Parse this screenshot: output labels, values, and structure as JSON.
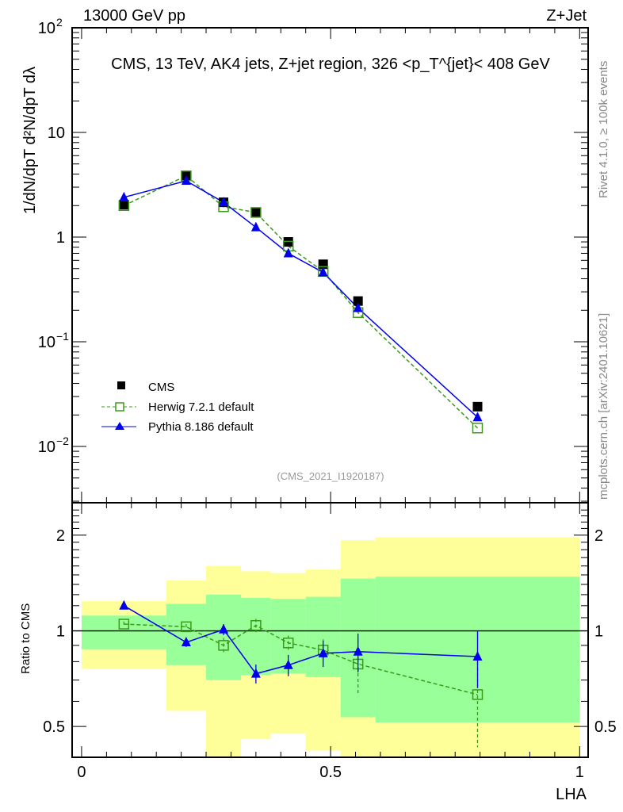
{
  "header": {
    "left": "13000 GeV pp",
    "right": "Z+Jet"
  },
  "side": {
    "rivet": "Rivet 4.1.0, ≥ 100k events",
    "mcplots": "mcplots.cern.ch [arXiv:2401.10621]"
  },
  "colors": {
    "cms": "#000000",
    "herwig": "#3a9a1a",
    "pythia": "#0000ee",
    "band_inner": "#99ff99",
    "band_outer": "#ffff99"
  },
  "chart_data": [
    {
      "type": "line",
      "title": "CMS, 13 TeV, AK4 jets, Z+jet region, 326 <p_T^{jet}< 408 GeV",
      "ylabel": "1/dN/dpT  d²N/dpT dλ",
      "ylabel_parts": {
        "num_top": "1",
        "den_top": "d N / d p",
        "num_right": "d²N",
        "den_right": "d p  dλ",
        "sub": "T"
      },
      "xlabel": "LHA",
      "xlim": [
        -0.019,
        1.017
      ],
      "ylim": [
        0.0029,
        100
      ],
      "yscale": "log",
      "yticks": [
        {
          "v": 0.01,
          "base": "10",
          "exp": "−2"
        },
        {
          "v": 0.1,
          "base": "10",
          "exp": "−1"
        },
        {
          "v": 1,
          "base": "1",
          "exp": ""
        },
        {
          "v": 10,
          "base": "10",
          "exp": ""
        },
        {
          "v": 100,
          "base": "10",
          "exp": "2"
        }
      ],
      "x": [
        0.085,
        0.21,
        0.285,
        0.35,
        0.415,
        0.485,
        0.555,
        0.795
      ],
      "series": [
        {
          "name": "CMS",
          "marker": "square-filled",
          "values": [
            2.04,
            3.8,
            2.15,
            1.72,
            0.9,
            0.55,
            0.245,
            0.024
          ]
        },
        {
          "name": "Herwig 7.2.1 default",
          "marker": "square-open",
          "line": "dashed",
          "values": [
            2.0,
            3.85,
            1.95,
            1.72,
            0.82,
            0.47,
            0.19,
            0.015
          ]
        },
        {
          "name": "Pythia 8.186 default",
          "marker": "triangle",
          "line": "solid",
          "values": [
            2.4,
            3.45,
            2.15,
            1.24,
            0.7,
            0.46,
            0.21,
            0.019
          ]
        }
      ],
      "legend": "bottom-left",
      "annotation": "(CMS_2021_I1920187)"
    },
    {
      "type": "line",
      "ylabel": "Ratio to CMS",
      "xlabel": "LHA",
      "xlim": [
        -0.019,
        1.017
      ],
      "ylim": [
        0.4,
        2.53
      ],
      "yscale": "log",
      "yticks": [
        {
          "v": 0.5,
          "label": "0.5"
        },
        {
          "v": 1,
          "label": "1"
        },
        {
          "v": 2,
          "label": "2"
        }
      ],
      "xticks": [
        {
          "v": 0,
          "label": "0"
        },
        {
          "v": 0.5,
          "label": "0.5"
        },
        {
          "v": 1,
          "label": "1"
        }
      ],
      "bin_edges": [
        0,
        0.17,
        0.25,
        0.32,
        0.38,
        0.45,
        0.52,
        0.59,
        1.0
      ],
      "band_inner": {
        "lo": [
          0.875,
          0.78,
          0.7,
          0.726,
          0.734,
          0.715,
          0.535,
          0.515
        ],
        "hi": [
          1.117,
          1.216,
          1.3,
          1.27,
          1.26,
          1.28,
          1.46,
          1.48
        ]
      },
      "band_outer": {
        "lo": [
          0.76,
          0.56,
          0.36,
          0.456,
          0.476,
          0.42,
          0.3,
          0.3
        ],
        "hi": [
          1.24,
          1.44,
          1.6,
          1.54,
          1.52,
          1.56,
          1.93,
          1.97
        ]
      },
      "x": [
        0.085,
        0.21,
        0.285,
        0.35,
        0.415,
        0.485,
        0.555,
        0.795
      ],
      "series": [
        {
          "name": "Herwig 7.2.1 default",
          "values": [
            1.05,
            1.03,
            0.9,
            1.04,
            0.916,
            0.87,
            0.786,
            0.63
          ],
          "err": [
            0.02,
            0.02,
            0.05,
            0.05,
            0.05,
            0.07,
            0.15,
            0.2
          ]
        },
        {
          "name": "Pythia 8.186 default",
          "values": [
            1.2,
            0.92,
            1.01,
            0.733,
            0.78,
            0.85,
            0.86,
            0.83
          ],
          "err": [
            0.02,
            0.03,
            0.04,
            0.05,
            0.06,
            0.08,
            0.12,
            0.17
          ]
        }
      ]
    }
  ]
}
